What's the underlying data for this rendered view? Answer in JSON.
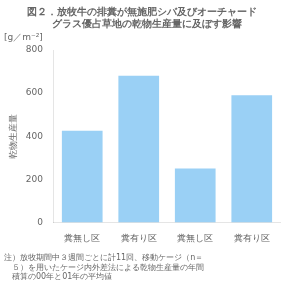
{
  "chart_data": {
    "type": "bar",
    "title": [
      "図２．放牧牛の排糞が無施肥シバ及びオーチャード",
      "　グラス優占草地の乾物生産量に及ぼす影響"
    ],
    "subtitle": [
      "注）放牧期間中３週間ごとに計11回、移動ケージ（n＝",
      "　５）を用いたケージ内外差法による乾物生産量の年間",
      "　積算の00年と01年の平均値"
    ],
    "ylabel": "乾物生産量",
    "annotations": [
      "[g／m⁻²]"
    ],
    "categories": [
      "糞無し区",
      "糞有り区",
      "糞無し区",
      "糞有り区"
    ],
    "values": [
      425,
      680,
      250,
      590
    ],
    "ylim": [
      0,
      800
    ],
    "yticks": [
      0,
      200,
      400,
      600,
      800
    ],
    "grid": false
  }
}
